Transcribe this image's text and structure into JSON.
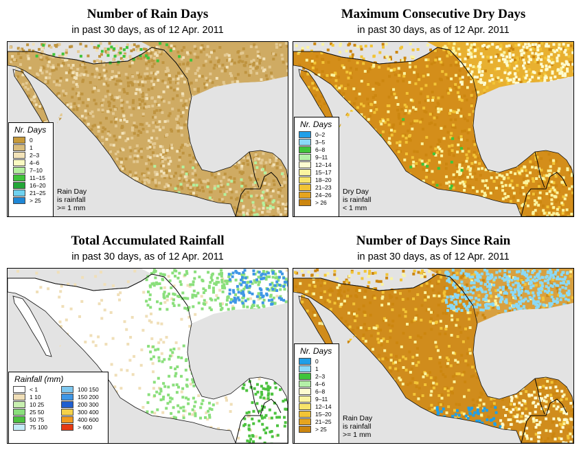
{
  "subtitle_text": "in past 30 days, as of  12 Apr. 2011",
  "panels": [
    {
      "title": "Number of Rain Days",
      "subtitle": "in past 30 days, as of  12 Apr. 2011",
      "legend_title": "Nr. Days",
      "legend_items": [
        {
          "label": "0",
          "color": "#c79a3a"
        },
        {
          "label": "1",
          "color": "#d9bd7d"
        },
        {
          "label": "2–3",
          "color": "#f3e3b8"
        },
        {
          "label": "4–6",
          "color": "#fafac2"
        },
        {
          "label": "7–10",
          "color": "#b4f09e"
        },
        {
          "label": "11–15",
          "color": "#3fc43a"
        },
        {
          "label": "16–20",
          "color": "#23a637"
        },
        {
          "label": "21–25",
          "color": "#6fd2f0"
        },
        {
          "label": "> 25",
          "color": "#1f87d6"
        }
      ],
      "note": [
        "Rain Day",
        "is rainfall",
        ">= 1 mm"
      ]
    },
    {
      "title": "Maximum Consecutive Dry Days",
      "subtitle": "in past 30 days, as of  12 Apr. 2011",
      "legend_title": "Nr. Days",
      "legend_items": [
        {
          "label": "0–2",
          "color": "#1f9fe8"
        },
        {
          "label": "3–5",
          "color": "#8ad9f7"
        },
        {
          "label": "6–8",
          "color": "#3fc43a"
        },
        {
          "label": "9–11",
          "color": "#b4f0a8"
        },
        {
          "label": "12–14",
          "color": "#fdfbd0"
        },
        {
          "label": "15–17",
          "color": "#fbf4a0"
        },
        {
          "label": "18–20",
          "color": "#f7e46a"
        },
        {
          "label": "21–23",
          "color": "#f2c436"
        },
        {
          "label": "24–26",
          "color": "#e6a41e"
        },
        {
          "label": "> 26",
          "color": "#cc860f"
        }
      ],
      "note": [
        "Dry Day",
        "is rainfall",
        "< 1 mm"
      ]
    },
    {
      "title": "Total Accumulated Rainfall",
      "subtitle": "in past 30 days, as of  12 Apr. 2011",
      "legend_title": "Rainfall (mm)",
      "legend_left": [
        {
          "label": "< 1",
          "color": "#ffffff"
        },
        {
          "label": "1    10",
          "color": "#f0dfb8"
        },
        {
          "label": "10    25",
          "color": "#c8f0b0"
        },
        {
          "label": "25    50",
          "color": "#8adf7c"
        },
        {
          "label": "50    75",
          "color": "#4cc23f"
        },
        {
          "label": "75   100",
          "color": "#c4ecf8"
        }
      ],
      "legend_right": [
        {
          "label": "100   150",
          "color": "#7ec8f0"
        },
        {
          "label": "150   200",
          "color": "#3f97e6"
        },
        {
          "label": "200   300",
          "color": "#1f5fd0"
        },
        {
          "label": "300   400",
          "color": "#f5d24a"
        },
        {
          "label": "400   600",
          "color": "#f29a1e"
        },
        {
          "label": "> 600",
          "color": "#e63a12"
        }
      ]
    },
    {
      "title": "Number of Days Since Rain",
      "subtitle": "in past 30 days, as of  12 Apr. 2011",
      "legend_title": "Nr. Days",
      "legend_items": [
        {
          "label": "0",
          "color": "#1f9fe8"
        },
        {
          "label": "1",
          "color": "#8ad9f7"
        },
        {
          "label": "2–3",
          "color": "#3fc43a"
        },
        {
          "label": "4–6",
          "color": "#b4f0a8"
        },
        {
          "label": "6–8",
          "color": "#fdfbd0"
        },
        {
          "label": "9–11",
          "color": "#fbf4a0"
        },
        {
          "label": "12–14",
          "color": "#f7e46a"
        },
        {
          "label": "15–20",
          "color": "#f2c436"
        },
        {
          "label": "21–25",
          "color": "#e6a41e"
        },
        {
          "label": "> 25",
          "color": "#cc860f"
        }
      ],
      "note": [
        "Rain Day",
        "is rainfall",
        ">= 1 mm"
      ]
    }
  ],
  "colors": {
    "ocean": "#e3e3e3",
    "land_rain_days": "#cfab63",
    "land_dry_days": "#d48e1a",
    "land_rainfall": "#ffffff",
    "land_since_rain": "#d08c1c"
  }
}
